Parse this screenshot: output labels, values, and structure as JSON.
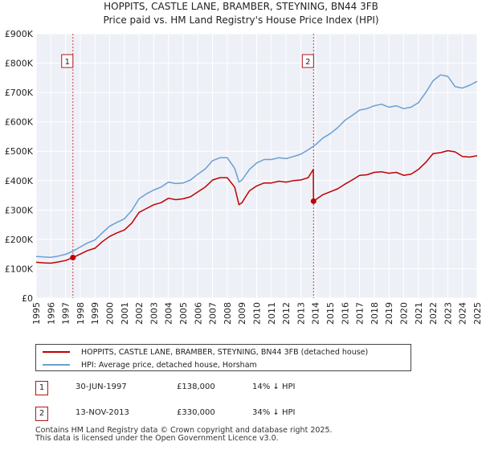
{
  "chart_data": {
    "type": "line",
    "title": "HOPPITS, CASTLE LANE, BRAMBER, STEYNING, BN44 3FB",
    "subtitle": "Price paid vs. HM Land Registry's House Price Index (HPI)",
    "xlabel": "",
    "ylabel": "",
    "xlim": [
      1995,
      2025
    ],
    "ylim": [
      0,
      900000
    ],
    "grid": true,
    "y_ticks": [
      {
        "value": 0,
        "label": "£0"
      },
      {
        "value": 100000,
        "label": "£100K"
      },
      {
        "value": 200000,
        "label": "£200K"
      },
      {
        "value": 300000,
        "label": "£300K"
      },
      {
        "value": 400000,
        "label": "£400K"
      },
      {
        "value": 500000,
        "label": "£500K"
      },
      {
        "value": 600000,
        "label": "£600K"
      },
      {
        "value": 700000,
        "label": "£700K"
      },
      {
        "value": 800000,
        "label": "£800K"
      },
      {
        "value": 900000,
        "label": "£900K"
      }
    ],
    "x_ticks": [
      "1995",
      "1996",
      "1997",
      "1998",
      "1999",
      "2000",
      "2001",
      "2002",
      "2003",
      "2004",
      "2005",
      "2006",
      "2007",
      "2008",
      "2009",
      "2010",
      "2011",
      "2012",
      "2013",
      "2014",
      "2015",
      "2016",
      "2017",
      "2018",
      "2019",
      "2020",
      "2021",
      "2022",
      "2023",
      "2024",
      "2025"
    ],
    "series": [
      {
        "name": "HOPPITS, CASTLE LANE, BRAMBER, STEYNING, BN44 3FB (detached house)",
        "color": "#c00000",
        "x": [
          1995.0,
          1995.5,
          1996.0,
          1996.5,
          1997.0,
          1997.5,
          1998.0,
          1998.5,
          1999.0,
          1999.5,
          2000.0,
          2000.5,
          2001.0,
          2001.5,
          2002.0,
          2002.5,
          2003.0,
          2003.5,
          2004.0,
          2004.5,
          2005.0,
          2005.5,
          2006.0,
          2006.5,
          2007.0,
          2007.5,
          2008.0,
          2008.5,
          2008.8,
          2009.0,
          2009.5,
          2010.0,
          2010.5,
          2011.0,
          2011.5,
          2012.0,
          2012.5,
          2013.0,
          2013.5,
          2013.85,
          2013.87,
          2014.5,
          2015.0,
          2015.5,
          2016.0,
          2016.5,
          2017.0,
          2017.5,
          2018.0,
          2018.5,
          2019.0,
          2019.5,
          2020.0,
          2020.5,
          2021.0,
          2021.5,
          2022.0,
          2022.5,
          2023.0,
          2023.5,
          2024.0,
          2024.5,
          2025.0
        ],
        "values": [
          122000,
          120000,
          119000,
          123000,
          128000,
          138000,
          150000,
          162000,
          170000,
          192000,
          210000,
          222000,
          232000,
          255000,
          292000,
          305000,
          318000,
          325000,
          340000,
          335000,
          338000,
          345000,
          362000,
          378000,
          402000,
          410000,
          410000,
          378000,
          318000,
          325000,
          365000,
          382000,
          392000,
          392000,
          398000,
          395000,
          400000,
          402000,
          410000,
          438000,
          330000,
          352000,
          362000,
          372000,
          388000,
          402000,
          418000,
          420000,
          428000,
          430000,
          425000,
          428000,
          418000,
          422000,
          438000,
          462000,
          492000,
          495000,
          502000,
          498000,
          482000,
          480000,
          485000
        ]
      },
      {
        "name": "HPI: Average price, detached house, Horsham",
        "color": "#6a9fd4",
        "x": [
          1995.0,
          1995.5,
          1996.0,
          1996.5,
          1997.0,
          1997.5,
          1998.0,
          1998.5,
          1999.0,
          1999.5,
          2000.0,
          2000.5,
          2001.0,
          2001.5,
          2002.0,
          2002.5,
          2003.0,
          2003.5,
          2004.0,
          2004.5,
          2005.0,
          2005.5,
          2006.0,
          2006.5,
          2007.0,
          2007.5,
          2008.0,
          2008.5,
          2008.8,
          2009.0,
          2009.5,
          2010.0,
          2010.5,
          2011.0,
          2011.5,
          2012.0,
          2012.5,
          2013.0,
          2013.5,
          2014.0,
          2014.5,
          2015.0,
          2015.5,
          2016.0,
          2016.5,
          2017.0,
          2017.5,
          2018.0,
          2018.5,
          2019.0,
          2019.5,
          2020.0,
          2020.5,
          2021.0,
          2021.5,
          2022.0,
          2022.5,
          2023.0,
          2023.5,
          2024.0,
          2024.5,
          2025.0
        ],
        "values": [
          142000,
          140000,
          139000,
          143000,
          149000,
          160000,
          174000,
          188000,
          198000,
          222000,
          245000,
          258000,
          270000,
          298000,
          338000,
          355000,
          368000,
          378000,
          395000,
          390000,
          392000,
          402000,
          422000,
          440000,
          468000,
          478000,
          478000,
          442000,
          395000,
          402000,
          438000,
          460000,
          472000,
          472000,
          478000,
          475000,
          482000,
          490000,
          505000,
          522000,
          545000,
          560000,
          580000,
          605000,
          622000,
          640000,
          645000,
          655000,
          660000,
          650000,
          655000,
          645000,
          650000,
          665000,
          700000,
          740000,
          760000,
          755000,
          720000,
          715000,
          725000,
          738000
        ]
      }
    ],
    "annotations": [
      {
        "label": "1",
        "x": 1997.5,
        "value": 138000,
        "date": "30-JUN-1997",
        "price": "£138,000",
        "hpi": "14% ↓ HPI"
      },
      {
        "label": "2",
        "x": 2013.87,
        "value": 330000,
        "date": "13-NOV-2013",
        "price": "£330,000",
        "hpi": "34% ↓ HPI"
      }
    ]
  },
  "legend": {
    "property_label": "HOPPITS, CASTLE LANE, BRAMBER, STEYNING, BN44 3FB (detached house)",
    "hpi_label": "HPI: Average price, detached house, Horsham"
  },
  "footer": {
    "line1": "Contains HM Land Registry data © Crown copyright and database right 2025.",
    "line2": "This data is licensed under the Open Government Licence v3.0."
  }
}
